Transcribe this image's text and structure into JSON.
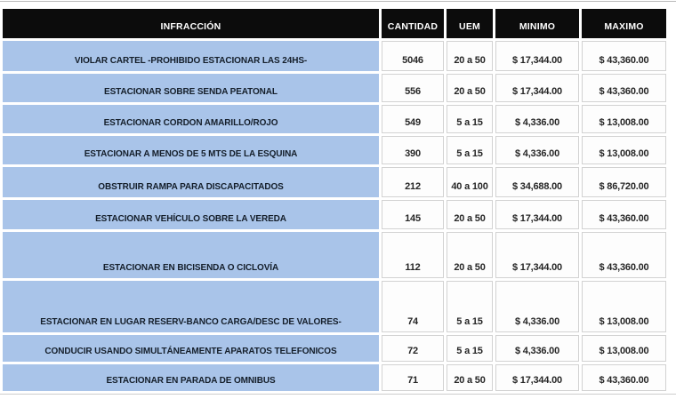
{
  "colors": {
    "header_bg": "#0c0c0c",
    "header_text": "#ffffff",
    "infraction_cell_bg": "#a9c4e9",
    "infraction_text": "#141e2a",
    "value_cell_bg": "#fdfdfd",
    "value_cell_border": "#d2d2d2",
    "value_text": "#262626",
    "page_bg": "#ffffff",
    "hairline": "#c4c4c4"
  },
  "chart_data": {
    "type": "table",
    "title": "",
    "header": {
      "infraccion": "INFRACCIÓN",
      "cantidad": "CANTIDAD",
      "uem": "UEM",
      "minimo": "MINIMO",
      "maximo": "MAXIMO"
    },
    "columns": [
      "INFRACCIÓN",
      "CANTIDAD",
      "UEM",
      "MINIMO",
      "MAXIMO"
    ],
    "rows": [
      {
        "infraccion": "VIOLAR CARTEL -PROHIBIDO ESTACIONAR LAS 24HS-",
        "cantidad": "5046",
        "uem": "20 a 50",
        "minimo": "$ 17,344.00",
        "maximo": "$ 43,360.00"
      },
      {
        "infraccion": "ESTACIONAR SOBRE SENDA PEATONAL",
        "cantidad": "556",
        "uem": "20 a 50",
        "minimo": "$ 17,344.00",
        "maximo": "$ 43,360.00"
      },
      {
        "infraccion": "ESTACIONAR CORDON AMARILLO/ROJO",
        "cantidad": "549",
        "uem": "5 a 15",
        "minimo": "$ 4,336.00",
        "maximo": "$ 13,008.00"
      },
      {
        "infraccion": "ESTACIONAR A MENOS DE 5 MTS DE LA ESQUINA",
        "cantidad": "390",
        "uem": "5 a 15",
        "minimo": "$ 4,336.00",
        "maximo": "$ 13,008.00"
      },
      {
        "infraccion": "OBSTRUIR RAMPA PARA DISCAPACITADOS",
        "cantidad": "212",
        "uem": "40 a 100",
        "minimo": "$ 34,688.00",
        "maximo": "$ 86,720.00"
      },
      {
        "infraccion": "ESTACIONAR VEHÍCULO SOBRE LA VEREDA",
        "cantidad": "145",
        "uem": "20 a 50",
        "minimo": "$ 17,344.00",
        "maximo": "$ 43,360.00"
      },
      {
        "infraccion": "ESTACIONAR EN BICISENDA O CICLOVÍA",
        "cantidad": "112",
        "uem": "20 a 50",
        "minimo": "$ 17,344.00",
        "maximo": "$ 43,360.00"
      },
      {
        "infraccion": "ESTACIONAR EN LUGAR RESERV-BANCO CARGA/DESC DE VALORES-",
        "cantidad": "74",
        "uem": "5 a 15",
        "minimo": "$ 4,336.00",
        "maximo": "$ 13,008.00"
      },
      {
        "infraccion": "CONDUCIR USANDO SIMULTÁNEAMENTE APARATOS TELEFONICOS",
        "cantidad": "72",
        "uem": "5 a 15",
        "minimo": "$ 4,336.00",
        "maximo": "$ 13,008.00"
      },
      {
        "infraccion": "ESTACIONAR EN PARADA DE OMNIBUS",
        "cantidad": "71",
        "uem": "20 a 50",
        "minimo": "$ 17,344.00",
        "maximo": "$ 43,360.00"
      }
    ]
  }
}
